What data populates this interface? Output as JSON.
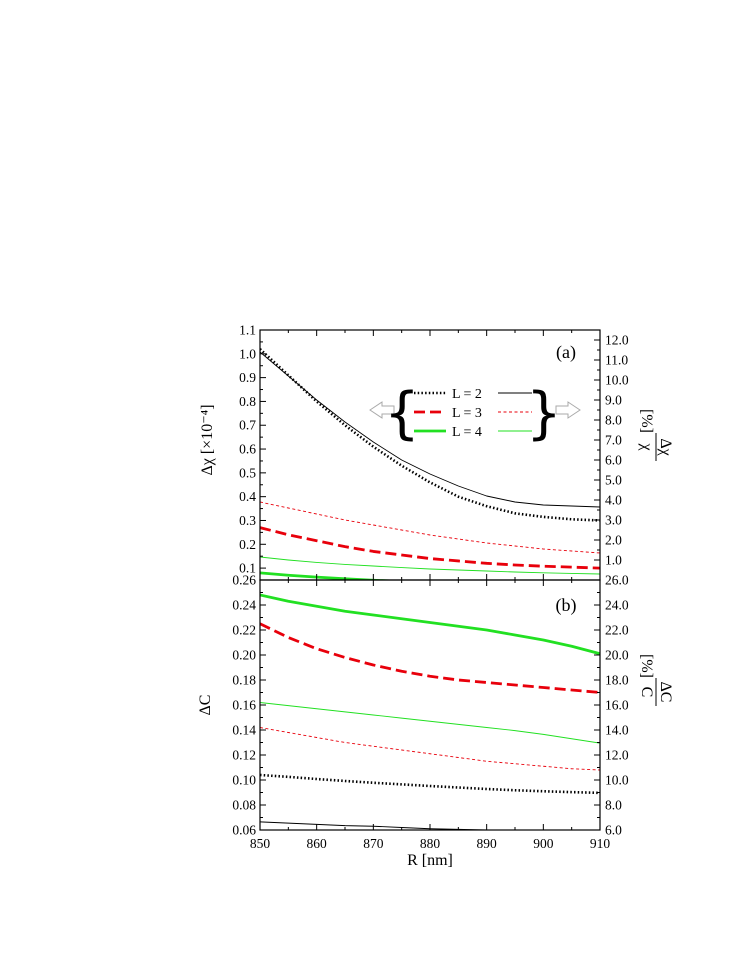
{
  "colors": {
    "L2": "#000000",
    "L3": "#e8000b",
    "L4": "#22e022",
    "frame": "#000000",
    "brace": "#555555",
    "arrow": "#aaaaaa"
  },
  "chart_data": [
    {
      "type": "line",
      "panel_label": "(a)",
      "xlim": [
        850,
        910
      ],
      "ylim": [
        0.05,
        1.1
      ],
      "ylim_right": [
        0.0,
        12.5
      ],
      "ylabel": "Δχ  [×10⁻⁴]",
      "ylabel_right_num": "Δχ",
      "ylabel_right_den": "χ",
      "ylabel_right_unit": "[%]",
      "yticks": [
        {
          "v": 0.1,
          "label": "0.1"
        },
        {
          "v": 0.2,
          "label": "0.2"
        },
        {
          "v": 0.3,
          "label": "0.3"
        },
        {
          "v": 0.4,
          "label": "0.4"
        },
        {
          "v": 0.5,
          "label": "0.5"
        },
        {
          "v": 0.6,
          "label": "0.6"
        },
        {
          "v": 0.7,
          "label": "0.7"
        },
        {
          "v": 0.8,
          "label": "0.8"
        },
        {
          "v": 0.9,
          "label": "0.9"
        },
        {
          "v": 1.0,
          "label": "1.0"
        },
        {
          "v": 1.1,
          "label": "1.1"
        }
      ],
      "yticks_right": [
        {
          "v": 1.0,
          "label": "1.0"
        },
        {
          "v": 2.0,
          "label": "2.0"
        },
        {
          "v": 3.0,
          "label": "3.0"
        },
        {
          "v": 4.0,
          "label": "4.0"
        },
        {
          "v": 5.0,
          "label": "5.0"
        },
        {
          "v": 6.0,
          "label": "6.0"
        },
        {
          "v": 7.0,
          "label": "7.0"
        },
        {
          "v": 8.0,
          "label": "8.0"
        },
        {
          "v": 9.0,
          "label": "9.0"
        },
        {
          "v": 10.0,
          "label": "10.0"
        },
        {
          "v": 11.0,
          "label": "11.0"
        },
        {
          "v": 12.0,
          "label": "12.0"
        }
      ],
      "x": [
        850,
        855,
        860,
        865,
        870,
        875,
        880,
        885,
        890,
        895,
        900,
        905,
        910
      ],
      "series": [
        {
          "name": "L = 2",
          "axis": "left",
          "style": "dotted-thick",
          "color_key": "L2",
          "values": [
            1.02,
            0.91,
            0.8,
            0.7,
            0.61,
            0.53,
            0.46,
            0.4,
            0.36,
            0.33,
            0.315,
            0.305,
            0.3
          ]
        },
        {
          "name": "L = 3",
          "axis": "left",
          "style": "dashed-thick",
          "color_key": "L3",
          "values": [
            0.27,
            0.24,
            0.215,
            0.19,
            0.17,
            0.155,
            0.14,
            0.13,
            0.12,
            0.113,
            0.108,
            0.104,
            0.1
          ]
        },
        {
          "name": "L = 4",
          "axis": "left",
          "style": "solid-thick",
          "color_key": "L4",
          "values": [
            0.08,
            0.07,
            0.062,
            0.055,
            0.049,
            0.044,
            0.04,
            0.037,
            0.034,
            0.031,
            0.029,
            0.027,
            0.025
          ]
        },
        {
          "name": "L = 2",
          "axis": "right",
          "style": "solid-thin",
          "color_key": "L2",
          "values": [
            11.4,
            10.2,
            9.0,
            7.9,
            6.9,
            6.0,
            5.3,
            4.7,
            4.2,
            3.9,
            3.75,
            3.7,
            3.65
          ]
        },
        {
          "name": "L = 3",
          "axis": "right",
          "style": "dashed-thin",
          "color_key": "L3",
          "values": [
            3.9,
            3.6,
            3.3,
            3.0,
            2.75,
            2.5,
            2.25,
            2.05,
            1.85,
            1.7,
            1.55,
            1.45,
            1.35
          ]
        },
        {
          "name": "L = 4",
          "axis": "right",
          "style": "solid-thin",
          "color_key": "L4",
          "values": [
            1.15,
            1.0,
            0.88,
            0.78,
            0.7,
            0.62,
            0.55,
            0.5,
            0.45,
            0.4,
            0.36,
            0.33,
            0.3
          ]
        }
      ],
      "legend": {
        "placement": "top-right",
        "labels": [
          "L = 2",
          "L = 3",
          "L = 4"
        ]
      }
    },
    {
      "type": "line",
      "panel_label": "(b)",
      "xlim": [
        850,
        910
      ],
      "ylim": [
        0.06,
        0.26
      ],
      "ylim_right": [
        6.0,
        26.0
      ],
      "xlabel": "R [nm]",
      "ylabel": "ΔC",
      "ylabel_right_num": "ΔC",
      "ylabel_right_den": "C",
      "ylabel_right_unit": "[%]",
      "xticks": [
        {
          "v": 850,
          "label": "850"
        },
        {
          "v": 860,
          "label": "860"
        },
        {
          "v": 870,
          "label": "870"
        },
        {
          "v": 880,
          "label": "880"
        },
        {
          "v": 890,
          "label": "890"
        },
        {
          "v": 900,
          "label": "900"
        },
        {
          "v": 910,
          "label": "910"
        }
      ],
      "yticks": [
        {
          "v": 0.06,
          "label": "0.06"
        },
        {
          "v": 0.08,
          "label": "0.08"
        },
        {
          "v": 0.1,
          "label": "0.10"
        },
        {
          "v": 0.12,
          "label": "0.12"
        },
        {
          "v": 0.14,
          "label": "0.14"
        },
        {
          "v": 0.16,
          "label": "0.16"
        },
        {
          "v": 0.18,
          "label": "0.18"
        },
        {
          "v": 0.2,
          "label": "0.20"
        },
        {
          "v": 0.22,
          "label": "0.22"
        },
        {
          "v": 0.24,
          "label": "0.24"
        },
        {
          "v": 0.26,
          "label": "0.26"
        }
      ],
      "yticks_right": [
        {
          "v": 6.0,
          "label": "6.0"
        },
        {
          "v": 8.0,
          "label": "8.0"
        },
        {
          "v": 10.0,
          "label": "10.0"
        },
        {
          "v": 12.0,
          "label": "12.0"
        },
        {
          "v": 14.0,
          "label": "14.0"
        },
        {
          "v": 16.0,
          "label": "16.0"
        },
        {
          "v": 18.0,
          "label": "18.0"
        },
        {
          "v": 20.0,
          "label": "20.0"
        },
        {
          "v": 22.0,
          "label": "22.0"
        },
        {
          "v": 24.0,
          "label": "24.0"
        },
        {
          "v": 26.0,
          "label": "26.0"
        }
      ],
      "x": [
        850,
        855,
        860,
        865,
        870,
        875,
        880,
        885,
        890,
        895,
        900,
        905,
        910
      ],
      "series": [
        {
          "name": "L = 2",
          "axis": "left",
          "style": "dotted-thick",
          "color_key": "L2",
          "values": [
            0.104,
            0.1025,
            0.1008,
            0.0992,
            0.0978,
            0.0965,
            0.0952,
            0.094,
            0.0928,
            0.0918,
            0.091,
            0.0903,
            0.0897
          ]
        },
        {
          "name": "L = 3",
          "axis": "left",
          "style": "dashed-thick",
          "color_key": "L3",
          "values": [
            0.225,
            0.214,
            0.205,
            0.198,
            0.192,
            0.187,
            0.183,
            0.18,
            0.178,
            0.176,
            0.174,
            0.172,
            0.17
          ]
        },
        {
          "name": "L = 4",
          "axis": "left",
          "style": "solid-thick",
          "color_key": "L4",
          "values": [
            0.248,
            0.243,
            0.239,
            0.235,
            0.232,
            0.229,
            0.226,
            0.223,
            0.22,
            0.216,
            0.212,
            0.207,
            0.201
          ]
        },
        {
          "name": "L = 2",
          "axis": "right",
          "style": "solid-thin",
          "color_key": "L2",
          "values": [
            6.65,
            6.55,
            6.45,
            6.35,
            6.3,
            6.2,
            6.1,
            6.05,
            6.0,
            5.95,
            5.9,
            5.9,
            5.9
          ]
        },
        {
          "name": "L = 3",
          "axis": "right",
          "style": "dashed-thin",
          "color_key": "L3",
          "values": [
            14.2,
            13.8,
            13.4,
            13.0,
            12.7,
            12.4,
            12.1,
            11.8,
            11.5,
            11.3,
            11.1,
            10.9,
            10.8
          ]
        },
        {
          "name": "L = 4",
          "axis": "right",
          "style": "solid-thin",
          "color_key": "L4",
          "values": [
            16.2,
            15.95,
            15.7,
            15.45,
            15.2,
            14.95,
            14.7,
            14.45,
            14.2,
            13.95,
            13.65,
            13.3,
            12.95
          ]
        }
      ]
    }
  ]
}
